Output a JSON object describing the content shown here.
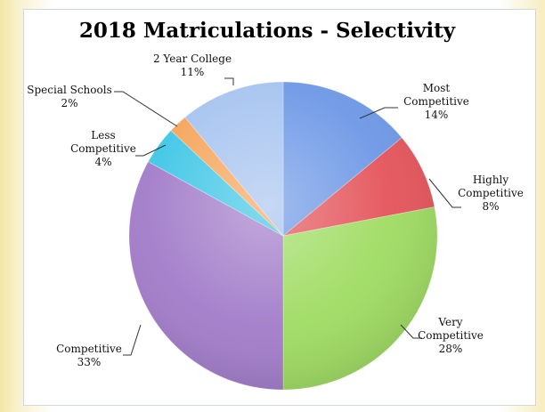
{
  "chart_data": {
    "type": "pie",
    "title": "2018 Matriculations - Selectivity",
    "slices": [
      {
        "name": [
          "Most",
          "Competitive"
        ],
        "value": 14,
        "label": "14%",
        "color": "#6d98e6"
      },
      {
        "name": [
          "Highly",
          "Competitive"
        ],
        "value": 8,
        "label": "8%",
        "color": "#e4545a"
      },
      {
        "name": [
          "Very",
          "Competitive"
        ],
        "value": 28,
        "label": "28%",
        "color": "#9fdc62"
      },
      {
        "name": [
          "Competitive"
        ],
        "value": 33,
        "label": "33%",
        "color": "#a27cc9"
      },
      {
        "name": [
          "Less",
          "Competitive"
        ],
        "value": 4,
        "label": "4%",
        "color": "#3fc6e6"
      },
      {
        "name": [
          "Special Schools"
        ],
        "value": 2,
        "label": "2%",
        "color": "#f6a45a"
      },
      {
        "name": [
          "2 Year College"
        ],
        "value": 11,
        "label": "11%",
        "color": "#a6c3ef"
      }
    ]
  }
}
